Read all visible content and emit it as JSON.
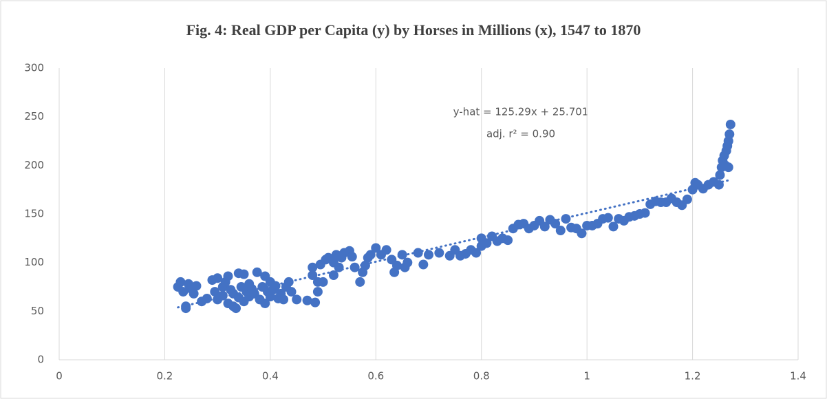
{
  "chart_data": {
    "type": "scatter",
    "title": "Fig. 4: Real GDP per Capita (y) by Horses in Millions (x), 1547 to 1870",
    "annotations": [
      "y-hat = 125.29x + 25.701",
      "adj. r² = 0.90"
    ],
    "trendline": {
      "slope": 125.29,
      "intercept": 25.701,
      "x_range": [
        0.225,
        1.27
      ],
      "color": "#4472c4"
    },
    "color": "#4472c4",
    "x": [
      0.225,
      0.23,
      0.235,
      0.24,
      0.24,
      0.245,
      0.25,
      0.255,
      0.26,
      0.27,
      0.28,
      0.29,
      0.295,
      0.3,
      0.3,
      0.31,
      0.31,
      0.315,
      0.32,
      0.32,
      0.325,
      0.33,
      0.33,
      0.335,
      0.34,
      0.34,
      0.345,
      0.35,
      0.35,
      0.355,
      0.36,
      0.36,
      0.365,
      0.37,
      0.375,
      0.38,
      0.385,
      0.39,
      0.39,
      0.395,
      0.4,
      0.4,
      0.405,
      0.41,
      0.415,
      0.42,
      0.425,
      0.43,
      0.435,
      0.44,
      0.45,
      0.47,
      0.48,
      0.48,
      0.485,
      0.49,
      0.49,
      0.495,
      0.5,
      0.505,
      0.51,
      0.52,
      0.52,
      0.525,
      0.53,
      0.535,
      0.54,
      0.55,
      0.555,
      0.56,
      0.57,
      0.575,
      0.58,
      0.585,
      0.59,
      0.6,
      0.61,
      0.62,
      0.63,
      0.635,
      0.64,
      0.65,
      0.655,
      0.66,
      0.68,
      0.69,
      0.7,
      0.72,
      0.74,
      0.75,
      0.76,
      0.77,
      0.78,
      0.79,
      0.8,
      0.8,
      0.81,
      0.82,
      0.83,
      0.84,
      0.85,
      0.86,
      0.87,
      0.88,
      0.89,
      0.9,
      0.91,
      0.92,
      0.93,
      0.94,
      0.95,
      0.96,
      0.97,
      0.98,
      0.99,
      1.0,
      1.01,
      1.02,
      1.03,
      1.04,
      1.05,
      1.06,
      1.07,
      1.08,
      1.09,
      1.1,
      1.11,
      1.12,
      1.13,
      1.14,
      1.15,
      1.16,
      1.17,
      1.18,
      1.19,
      1.2,
      1.205,
      1.21,
      1.22,
      1.23,
      1.24,
      1.25,
      1.252,
      1.255,
      1.257,
      1.26,
      1.262,
      1.264,
      1.266,
      1.268,
      1.27,
      1.272,
      1.268
    ],
    "y": [
      75,
      80,
      70,
      55,
      53,
      78,
      73,
      68,
      76,
      60,
      63,
      82,
      70,
      84,
      62,
      75,
      66,
      80,
      86,
      58,
      72,
      55,
      68,
      53,
      89,
      64,
      75,
      88,
      60,
      70,
      78,
      65,
      73,
      68,
      90,
      62,
      75,
      86,
      58,
      70,
      80,
      65,
      72,
      76,
      63,
      68,
      62,
      75,
      80,
      70,
      62,
      61,
      95,
      87,
      59,
      70,
      80,
      98,
      80,
      103,
      105,
      100,
      87,
      108,
      95,
      105,
      110,
      112,
      106,
      95,
      80,
      90,
      97,
      105,
      108,
      115,
      108,
      113,
      103,
      90,
      97,
      108,
      95,
      100,
      110,
      98,
      108,
      110,
      107,
      113,
      107,
      109,
      113,
      110,
      117,
      125,
      120,
      127,
      122,
      125,
      123,
      135,
      139,
      140,
      135,
      138,
      143,
      137,
      144,
      140,
      133,
      145,
      136,
      135,
      130,
      138,
      138,
      140,
      145,
      146,
      137,
      145,
      143,
      147,
      148,
      150,
      151,
      160,
      163,
      162,
      162,
      166,
      162,
      159,
      165,
      175,
      182,
      180,
      176,
      180,
      183,
      180,
      190,
      198,
      205,
      210,
      200,
      215,
      220,
      225,
      232,
      242,
      198
    ],
    "xlim": [
      0,
      1.4
    ],
    "xticks": [
      0,
      0.2,
      0.4,
      0.6,
      0.8,
      1,
      1.2,
      1.4
    ],
    "ylim": [
      0,
      300
    ],
    "yticks": [
      0,
      50,
      100,
      150,
      200,
      250,
      300
    ],
    "grid": "x"
  }
}
